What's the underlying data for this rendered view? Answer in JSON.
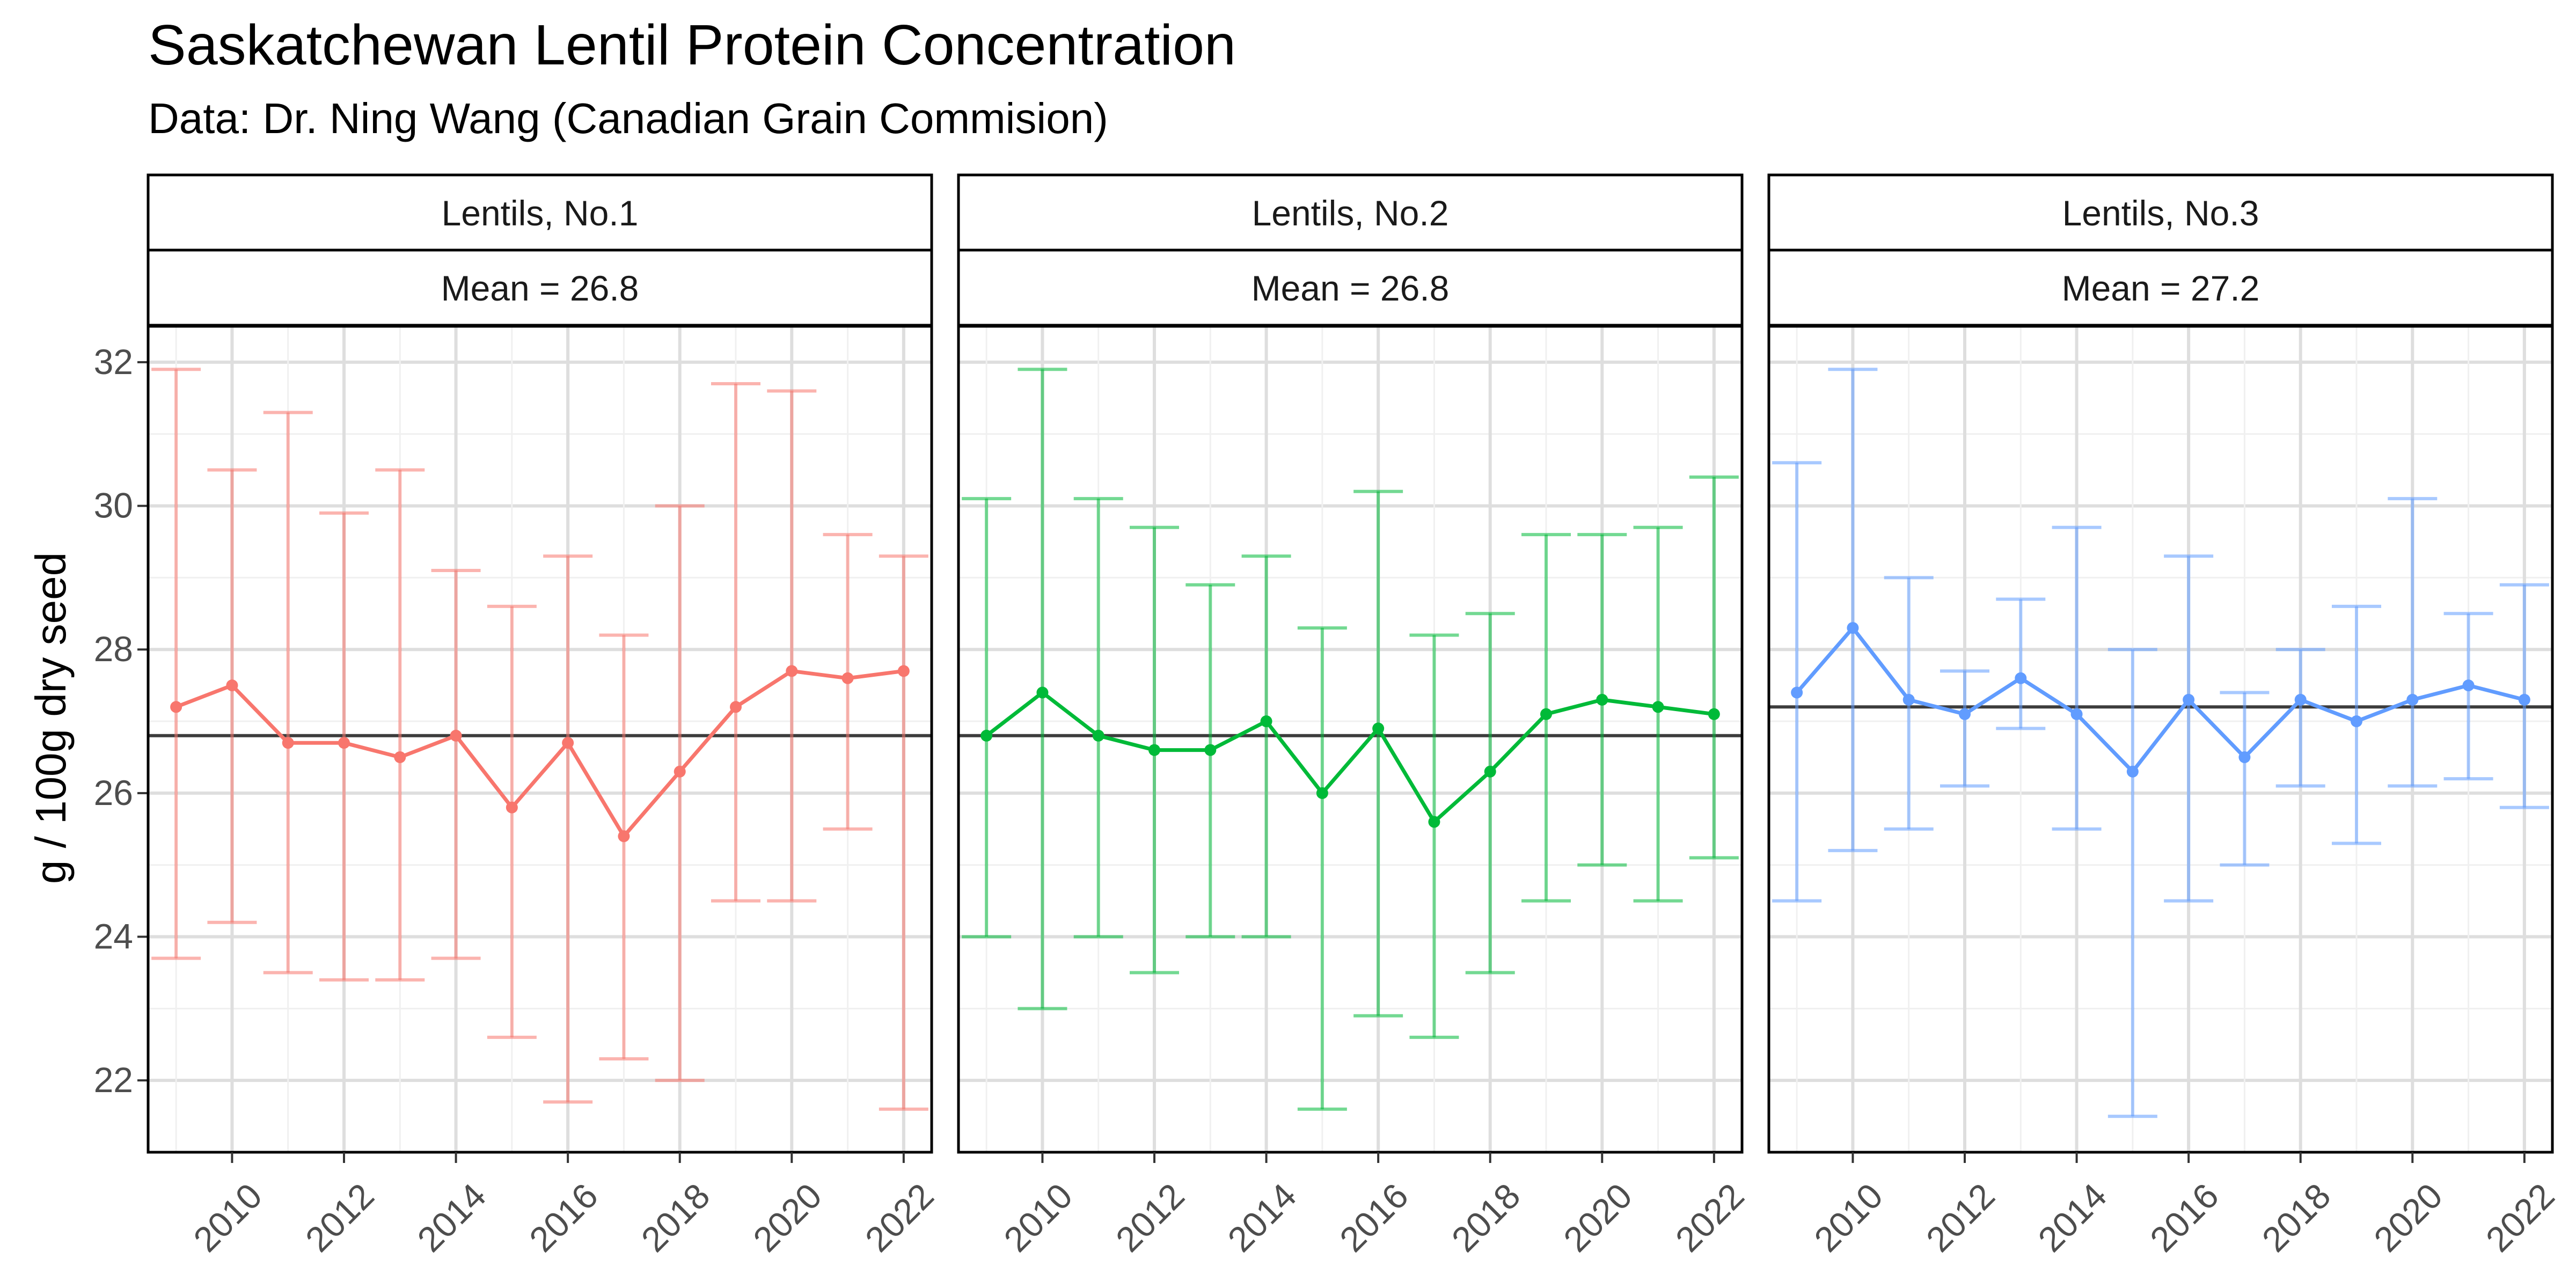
{
  "title": "Saskatchewan Lentil Protein Concentration",
  "subtitle": "Data: Dr. Ning Wang (Canadian Grain Commision)",
  "chart_data": {
    "type": "line",
    "ylabel": "g / 100g dry seed",
    "xlabel": "",
    "xlim": [
      2008.5,
      2022.5
    ],
    "ylim": [
      21,
      32.5
    ],
    "x_ticks": [
      "2010",
      "2012",
      "2014",
      "2016",
      "2018",
      "2020",
      "2022"
    ],
    "y_ticks": [
      "22",
      "24",
      "26",
      "28",
      "30",
      "32"
    ],
    "grid": true,
    "legend": "none",
    "x": [
      2009,
      2010,
      2011,
      2012,
      2013,
      2014,
      2015,
      2016,
      2017,
      2018,
      2019,
      2020,
      2021,
      2022
    ],
    "panels": [
      {
        "name": "Lentils, No.1",
        "mean_label": "Mean = 26.8",
        "mean": 26.8,
        "color": "#F8766D",
        "values": [
          27.2,
          27.5,
          26.7,
          26.7,
          26.5,
          26.8,
          25.8,
          26.7,
          25.4,
          26.3,
          27.2,
          27.7,
          27.6,
          27.7
        ],
        "lower": [
          23.7,
          24.2,
          23.5,
          23.4,
          23.4,
          23.7,
          22.6,
          21.7,
          22.3,
          22.0,
          24.5,
          24.5,
          25.5,
          21.6
        ],
        "upper": [
          31.9,
          30.5,
          31.3,
          29.9,
          30.5,
          29.1,
          28.6,
          29.3,
          28.2,
          30.0,
          31.7,
          31.6,
          29.6,
          29.3
        ]
      },
      {
        "name": "Lentils, No.2",
        "mean_label": "Mean = 26.8",
        "mean": 26.8,
        "color": "#00BA38",
        "values": [
          26.8,
          27.4,
          26.8,
          26.6,
          26.6,
          27.0,
          26.0,
          26.9,
          25.6,
          26.3,
          27.1,
          27.3,
          27.2,
          27.1
        ],
        "lower": [
          24.0,
          23.0,
          24.0,
          23.5,
          24.0,
          24.0,
          21.6,
          22.9,
          22.6,
          23.5,
          24.5,
          25.0,
          24.5,
          25.1
        ],
        "upper": [
          30.1,
          31.9,
          30.1,
          29.7,
          28.9,
          29.3,
          28.3,
          30.2,
          28.2,
          28.5,
          29.6,
          29.6,
          29.7,
          30.4
        ]
      },
      {
        "name": "Lentils, No.3",
        "mean_label": "Mean = 27.2",
        "mean": 27.2,
        "color": "#619CFF",
        "values": [
          27.4,
          28.3,
          27.3,
          27.1,
          27.6,
          27.1,
          26.3,
          27.3,
          26.5,
          27.3,
          27.0,
          27.3,
          27.5,
          27.3
        ],
        "lower": [
          24.5,
          25.2,
          25.5,
          26.1,
          26.9,
          25.5,
          21.5,
          24.5,
          25.0,
          26.1,
          25.3,
          26.1,
          26.2,
          25.8
        ],
        "upper": [
          30.6,
          31.9,
          29.0,
          27.7,
          28.7,
          29.7,
          28.0,
          29.3,
          27.4,
          28.0,
          28.6,
          30.1,
          28.5,
          28.9
        ]
      }
    ]
  }
}
